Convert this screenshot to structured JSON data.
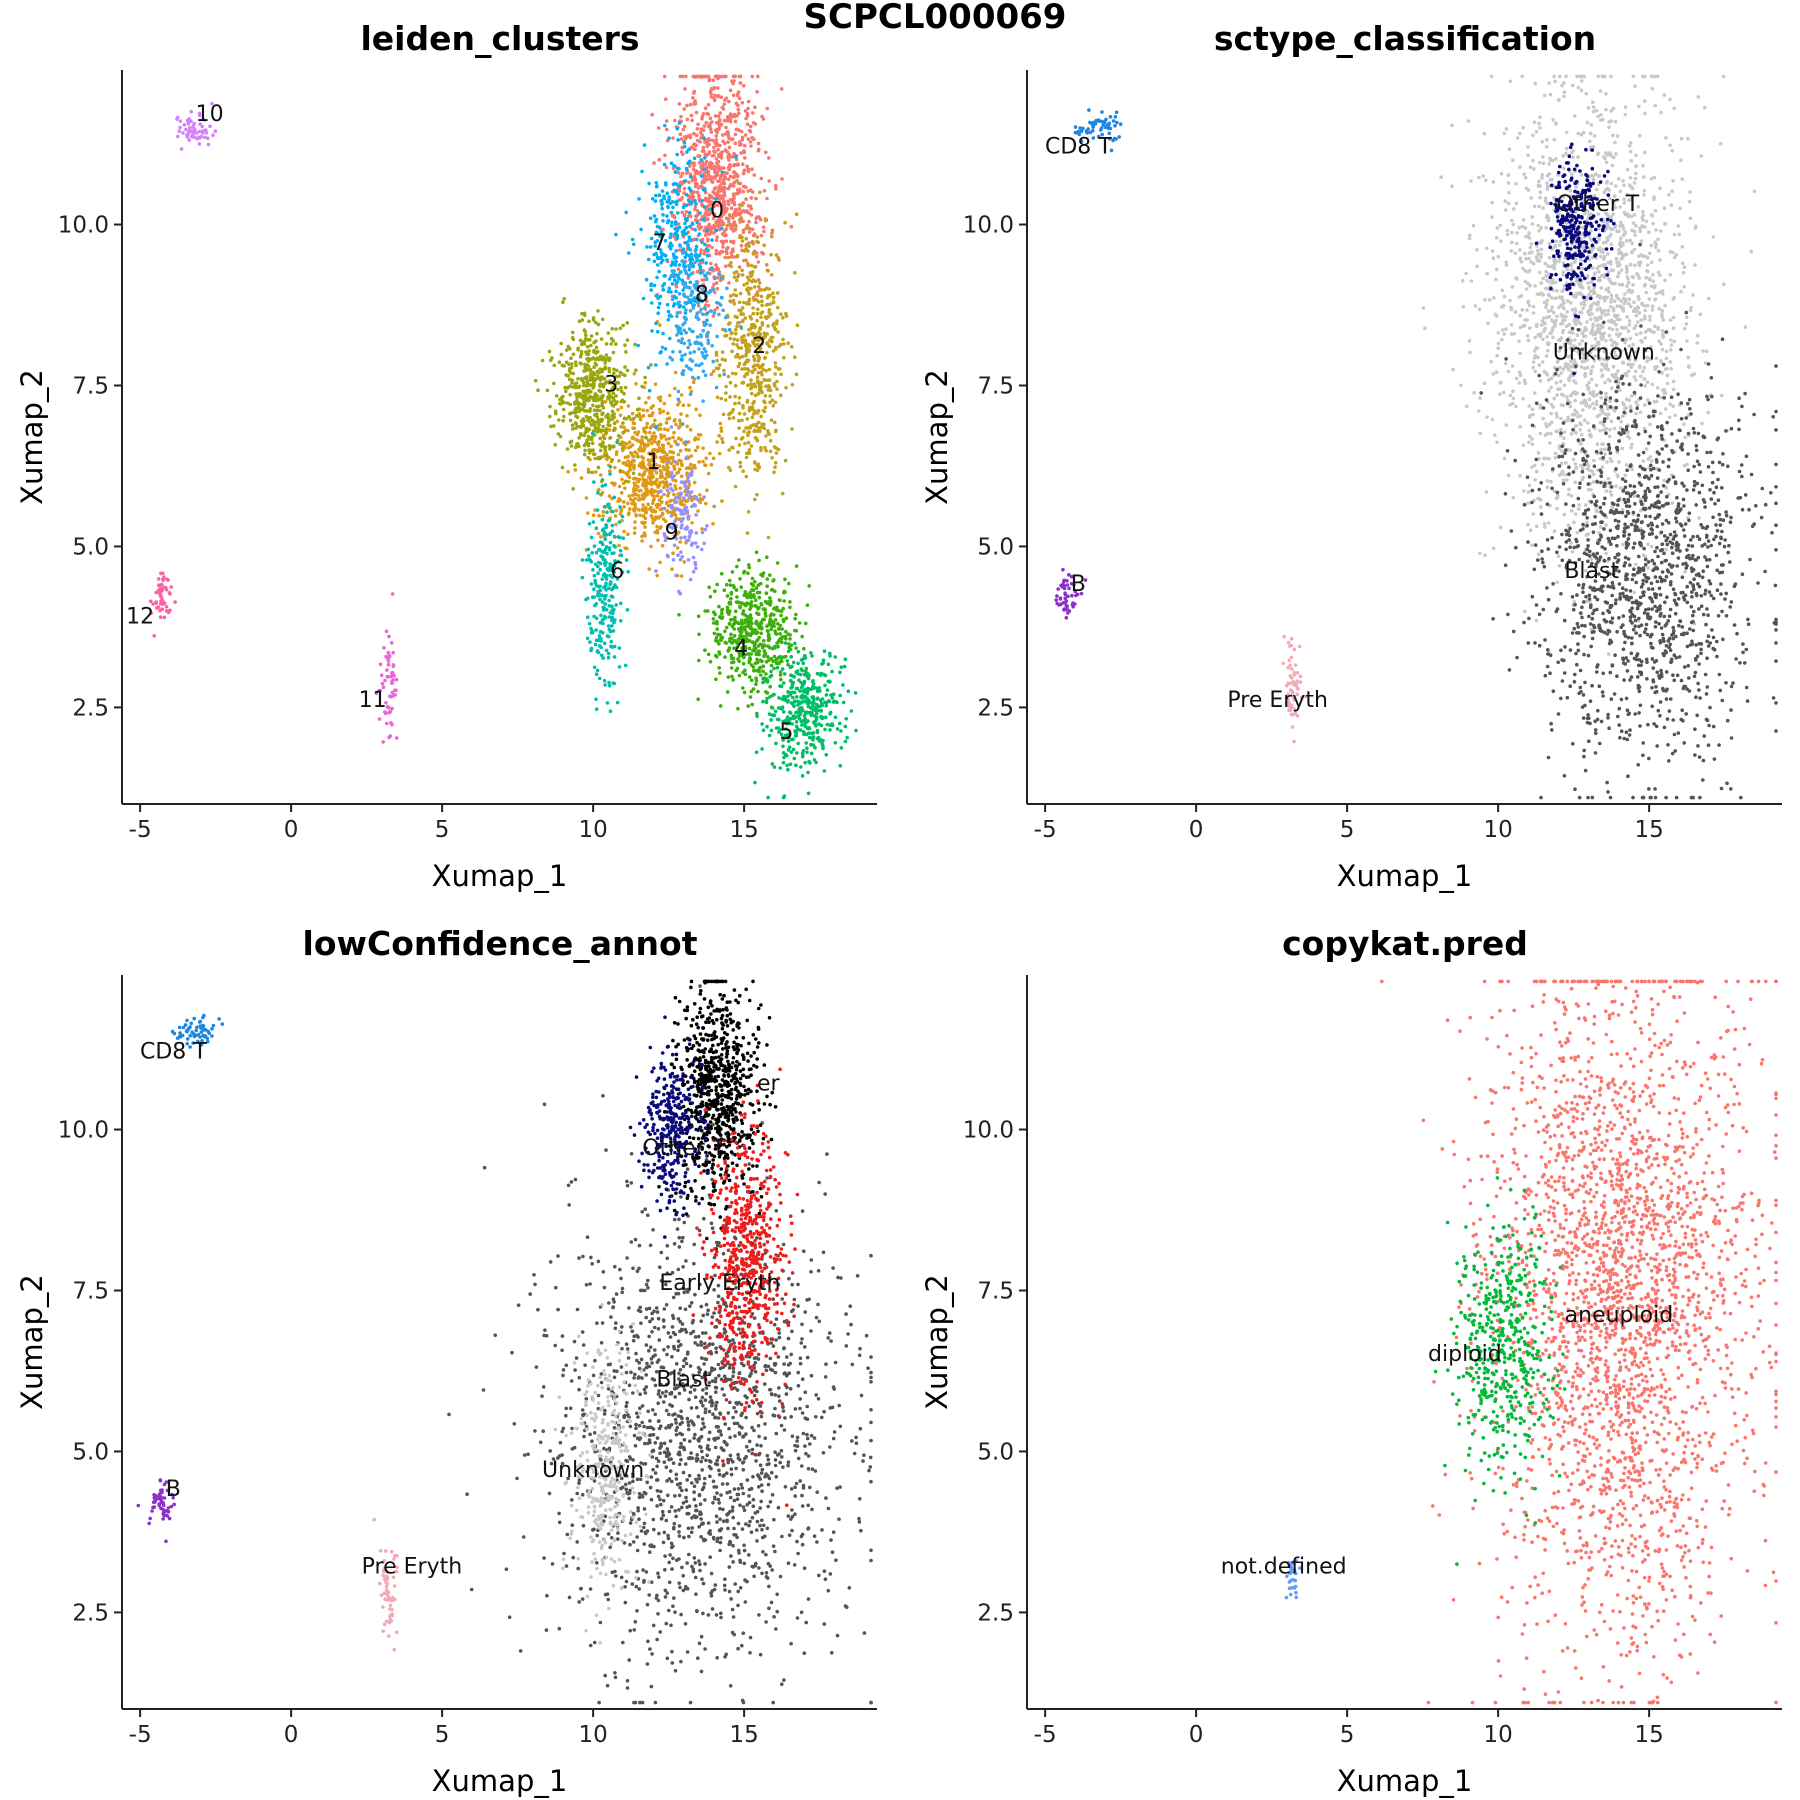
{
  "figure_title": "SCPCL000069",
  "chart_data": [
    {
      "type": "scatter",
      "title": "leiden_clusters",
      "xlabel": "Xumap_1",
      "ylabel": "Xumap_2",
      "xlim": [
        -5.6,
        19.4
      ],
      "ylim": [
        1.0,
        12.4
      ],
      "xticks": [
        "-5",
        "0",
        "5",
        "10",
        "15"
      ],
      "yticks": [
        "2.5",
        "5.0",
        "7.5",
        "10.0"
      ],
      "grid": false,
      "legend": "none",
      "series": [
        {
          "label": "0",
          "color": "#f8766d",
          "cx": 14.1,
          "cy": 10.6,
          "sx": 0.75,
          "sy": 0.9,
          "n": 900,
          "label_x": 14.1,
          "label_y": 10.2
        },
        {
          "label": "1",
          "color": "#de9a14",
          "cx": 12.0,
          "cy": 6.2,
          "sx": 0.9,
          "sy": 0.6,
          "n": 700,
          "label_x": 12.0,
          "label_y": 6.3
        },
        {
          "label": "2",
          "color": "#c2a21a",
          "cx": 15.3,
          "cy": 7.9,
          "sx": 0.55,
          "sy": 1.0,
          "n": 520,
          "label_x": 15.5,
          "label_y": 8.1
        },
        {
          "label": "3",
          "color": "#9aa60e",
          "cx": 10.0,
          "cy": 7.3,
          "sx": 0.65,
          "sy": 0.55,
          "n": 520,
          "label_x": 10.6,
          "label_y": 7.5
        },
        {
          "label": "4",
          "color": "#3bb008",
          "cx": 15.3,
          "cy": 3.7,
          "sx": 0.75,
          "sy": 0.45,
          "n": 500,
          "label_x": 14.9,
          "label_y": 3.4
        },
        {
          "label": "5",
          "color": "#00be67",
          "cx": 17.0,
          "cy": 2.4,
          "sx": 0.65,
          "sy": 0.45,
          "n": 400,
          "label_x": 16.4,
          "label_y": 2.1
        },
        {
          "label": "6",
          "color": "#00bfae",
          "cx": 10.4,
          "cy": 4.4,
          "sx": 0.3,
          "sy": 0.75,
          "n": 260,
          "label_x": 10.8,
          "label_y": 4.6
        },
        {
          "label": "7",
          "color": "#00b0f6",
          "cx": 12.8,
          "cy": 9.7,
          "sx": 0.6,
          "sy": 0.8,
          "n": 330,
          "label_x": 12.2,
          "label_y": 9.7
        },
        {
          "label": "8",
          "color": "#35a9ec",
          "cx": 13.4,
          "cy": 8.6,
          "sx": 0.45,
          "sy": 0.6,
          "n": 180,
          "label_x": 13.6,
          "label_y": 8.9
        },
        {
          "label": "9",
          "color": "#9590ff",
          "cx": 13.0,
          "cy": 5.5,
          "sx": 0.35,
          "sy": 0.5,
          "n": 120,
          "label_x": 12.6,
          "label_y": 5.2
        },
        {
          "label": "10",
          "color": "#d582f8",
          "cx": -3.2,
          "cy": 11.5,
          "sx": 0.35,
          "sy": 0.12,
          "n": 60,
          "label_x": -2.7,
          "label_y": 11.7
        },
        {
          "label": "11",
          "color": "#ec65d7",
          "cx": 3.2,
          "cy": 2.8,
          "sx": 0.15,
          "sy": 0.4,
          "n": 60,
          "label_x": 2.7,
          "label_y": 2.6
        },
        {
          "label": "12",
          "color": "#fb61a3",
          "cx": -4.3,
          "cy": 4.2,
          "sx": 0.2,
          "sy": 0.18,
          "n": 50,
          "label_x": -5.0,
          "label_y": 3.9
        }
      ]
    },
    {
      "type": "scatter",
      "title": "sctype_classification",
      "xlabel": "Xumap_1",
      "ylabel": "Xumap_2",
      "xlim": [
        -5.6,
        19.4
      ],
      "ylim": [
        1.0,
        12.4
      ],
      "xticks": [
        "-5",
        "0",
        "5",
        "10",
        "15"
      ],
      "yticks": [
        "2.5",
        "5.0",
        "7.5",
        "10.0"
      ],
      "grid": false,
      "legend": "none",
      "series": [
        {
          "label": "Unknown",
          "color": "#c8c8c8",
          "cx": 13.0,
          "cy": 8.6,
          "sx": 1.6,
          "sy": 1.7,
          "n": 1900,
          "label_x": 13.5,
          "label_y": 8.0
        },
        {
          "label": "Blast",
          "color": "#545454",
          "cx": 14.8,
          "cy": 4.6,
          "sx": 1.8,
          "sy": 1.5,
          "n": 1350,
          "label_x": 13.1,
          "label_y": 4.6
        },
        {
          "label": "Other T",
          "color": "#0a0a7e",
          "cx": 12.6,
          "cy": 10.0,
          "sx": 0.45,
          "sy": 0.55,
          "n": 300,
          "label_x": 13.3,
          "label_y": 10.3
        },
        {
          "label": "CD8 T",
          "color": "#1f86e0",
          "cx": -3.2,
          "cy": 11.5,
          "sx": 0.35,
          "sy": 0.12,
          "n": 60,
          "label_x": -3.9,
          "label_y": 11.2
        },
        {
          "label": "B",
          "color": "#8b31c9",
          "cx": -4.3,
          "cy": 4.2,
          "sx": 0.2,
          "sy": 0.18,
          "n": 50,
          "label_x": -3.9,
          "label_y": 4.4
        },
        {
          "label": "Pre Eryth",
          "color": "#f2aab8",
          "cx": 3.2,
          "cy": 2.8,
          "sx": 0.15,
          "sy": 0.4,
          "n": 60,
          "label_x": 2.7,
          "label_y": 2.6
        }
      ]
    },
    {
      "type": "scatter",
      "title": "lowConfidence_annot",
      "xlabel": "Xumap_1",
      "ylabel": "Xumap_2",
      "xlim": [
        -5.6,
        19.4
      ],
      "ylim": [
        1.0,
        12.4
      ],
      "xticks": [
        "-5",
        "0",
        "5",
        "10",
        "15"
      ],
      "yticks": [
        "2.5",
        "5.0",
        "7.5",
        "10.0"
      ],
      "grid": false,
      "legend": "none",
      "series": [
        {
          "label": "Blast",
          "color": "#545454",
          "cx": 13.5,
          "cy": 5.3,
          "sx": 2.4,
          "sy": 1.7,
          "n": 1700,
          "label_x": 13.0,
          "label_y": 6.1
        },
        {
          "label": "er",
          "color": "#000000",
          "cx": 14.1,
          "cy": 10.6,
          "sx": 0.7,
          "sy": 0.8,
          "n": 800,
          "label_x": 15.8,
          "label_y": 10.7
        },
        {
          "label": "Early Eryth",
          "color": "#ee1c1c",
          "cx": 15.1,
          "cy": 7.9,
          "sx": 0.6,
          "sy": 1.0,
          "n": 600,
          "label_x": 14.2,
          "label_y": 7.6
        },
        {
          "label": "Other T",
          "color": "#0a0a7e",
          "cx": 12.6,
          "cy": 10.0,
          "sx": 0.45,
          "sy": 0.55,
          "n": 300,
          "label_x": 13.0,
          "label_y": 9.7
        },
        {
          "label": "Unknown",
          "color": "#c8c8c8",
          "cx": 10.4,
          "cy": 4.8,
          "sx": 0.55,
          "sy": 0.9,
          "n": 350,
          "label_x": 10.0,
          "label_y": 4.7
        },
        {
          "label": "CD8 T",
          "color": "#1f86e0",
          "cx": -3.2,
          "cy": 11.5,
          "sx": 0.35,
          "sy": 0.12,
          "n": 60,
          "label_x": -3.9,
          "label_y": 11.2
        },
        {
          "label": "B",
          "color": "#8b31c9",
          "cx": -4.3,
          "cy": 4.2,
          "sx": 0.2,
          "sy": 0.18,
          "n": 50,
          "label_x": -3.9,
          "label_y": 4.4
        },
        {
          "label": "Pre Eryth",
          "color": "#f2aab8",
          "cx": 3.2,
          "cy": 2.8,
          "sx": 0.15,
          "sy": 0.4,
          "n": 60,
          "label_x": 4.0,
          "label_y": 3.2
        }
      ]
    },
    {
      "type": "scatter",
      "title": "copykat.pred",
      "xlabel": "Xumap_1",
      "ylabel": "Xumap_2",
      "xlim": [
        -5.6,
        19.4
      ],
      "ylim": [
        1.0,
        12.4
      ],
      "xticks": [
        "-5",
        "0",
        "5",
        "10",
        "15"
      ],
      "yticks": [
        "2.5",
        "5.0",
        "7.5",
        "10.0"
      ],
      "grid": false,
      "legend": "none",
      "series": [
        {
          "label": "aneuploid",
          "color": "#f8766d",
          "cx": 14.0,
          "cy": 7.2,
          "sx": 2.2,
          "sy": 2.6,
          "n": 2700,
          "label_x": 14.0,
          "label_y": 7.1
        },
        {
          "label": "diploid",
          "color": "#00ba38",
          "cx": 10.2,
          "cy": 6.6,
          "sx": 0.8,
          "sy": 1.0,
          "n": 500,
          "label_x": 8.9,
          "label_y": 6.5
        },
        {
          "label": "not.defined",
          "color": "#619cff",
          "cx": 3.2,
          "cy": 3.0,
          "sx": 0.12,
          "sy": 0.3,
          "n": 30,
          "label_x": 2.9,
          "label_y": 3.2
        }
      ]
    }
  ]
}
